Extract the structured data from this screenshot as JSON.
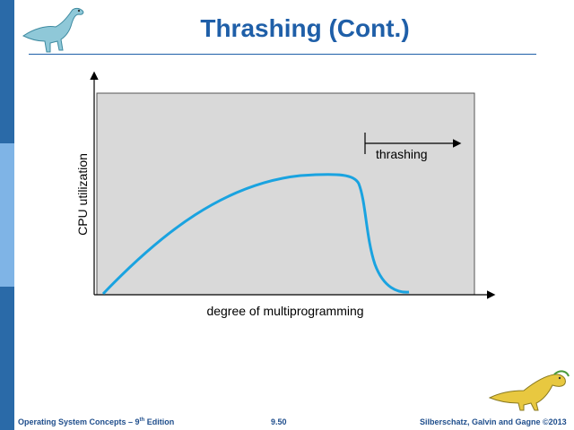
{
  "slide": {
    "title": "Thrashing (Cont.)",
    "footer_left_prefix": "Operating System Concepts – 9",
    "footer_left_sup": "th",
    "footer_left_suffix": " Edition",
    "footer_center": "9.50",
    "footer_right": "Silberschatz, Galvin and Gagne ©2013"
  },
  "diagram": {
    "y_axis_label": "CPU utilization",
    "x_axis_label": "degree of multiprogramming",
    "annotation": "thrashing"
  },
  "colors": {
    "title": "#1f5fa8",
    "curve": "#1aa3e0",
    "plot_background": "#d9d9d9",
    "sidebar_dark": "#2a6aa8",
    "sidebar_light": "#7fb4e6"
  },
  "icons": [
    "dinosaur-logo-top",
    "dinosaur-logo-bottom"
  ]
}
